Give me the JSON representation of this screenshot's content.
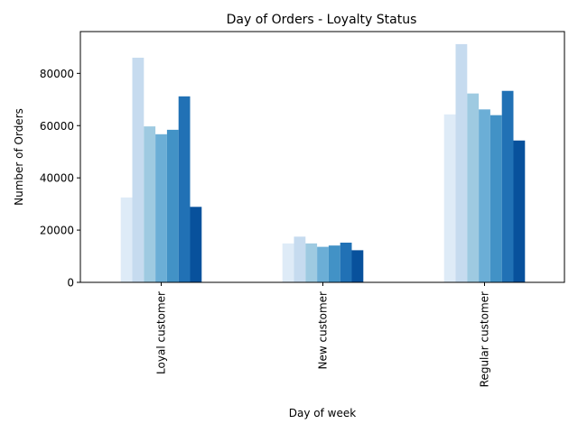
{
  "chart_data": {
    "type": "bar",
    "title": "Day of Orders - Loyalty Status",
    "xlabel": "Day of week",
    "ylabel": "Number of Orders",
    "categories": [
      "Loyal customer",
      "New customer",
      "Regular customer"
    ],
    "ylim": [
      0,
      96000
    ],
    "yticks": [
      0,
      20000,
      40000,
      60000,
      80000
    ],
    "grid": false,
    "legend": "none",
    "series": [
      {
        "values": [
          32500,
          14900,
          64300
        ],
        "color": "#deebf7"
      },
      {
        "values": [
          86000,
          17500,
          91200
        ],
        "color": "#c6dbef"
      },
      {
        "values": [
          59700,
          14900,
          72300
        ],
        "color": "#9ecae1"
      },
      {
        "values": [
          56700,
          13600,
          66200
        ],
        "color": "#6baed6"
      },
      {
        "values": [
          58400,
          14100,
          64000
        ],
        "color": "#4292c6"
      },
      {
        "values": [
          71200,
          15200,
          73300
        ],
        "color": "#2171b5"
      },
      {
        "values": [
          28900,
          12300,
          54300
        ],
        "color": "#08519c"
      }
    ]
  }
}
